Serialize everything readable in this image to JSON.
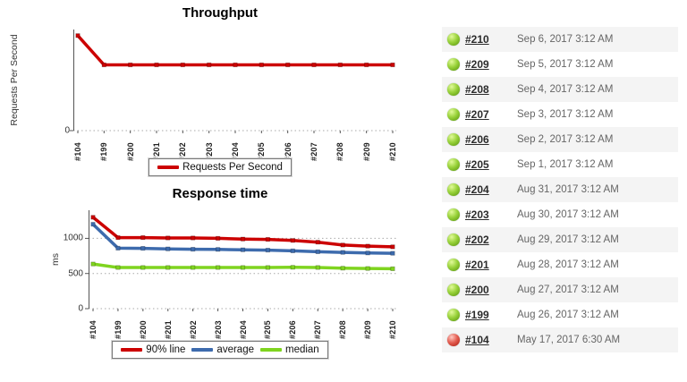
{
  "colors": {
    "red": "#cc0000",
    "blue": "#3d6bad",
    "green": "#7fd41f",
    "grid": "#aaaaaa",
    "axis": "#555555",
    "tick_text": "#333333",
    "date_text": "#666666",
    "row_stripe": "#f4f4f4",
    "legend_border": "#7a7a7a",
    "ball_green": "#8cc63f",
    "ball_red": "#d9534f"
  },
  "chart_data": [
    {
      "type": "line",
      "title": "Throughput",
      "ylabel": "Requests Per Second",
      "xlabel": "",
      "grid": "zero-line only, dotted",
      "legend_position": "bottom-center",
      "y_tick_labels_shown": [
        "0"
      ],
      "ylim": [
        0,
        100
      ],
      "y_ticks": [
        {
          "value": 0,
          "label": "0"
        }
      ],
      "categories": [
        "#104",
        "#199",
        "#200",
        "#201",
        "#202",
        "#203",
        "#204",
        "#205",
        "#206",
        "#207",
        "#208",
        "#209",
        "#210"
      ],
      "series": [
        {
          "name": "Requests Per Second",
          "color_key": "red",
          "values": [
            94,
            65,
            65,
            65,
            65,
            65,
            65,
            65,
            65,
            65,
            65,
            65,
            65
          ],
          "note_units": "relative (axis shows only 0)"
        }
      ]
    },
    {
      "type": "line",
      "title": "Response time",
      "ylabel": "ms",
      "xlabel": "",
      "grid": "dotted horizontal at 0, 500, 1000",
      "legend_position": "bottom-center",
      "ylim": [
        0,
        1400
      ],
      "y_ticks": [
        {
          "value": 0,
          "label": "0"
        },
        {
          "value": 500,
          "label": "500"
        },
        {
          "value": 1000,
          "label": "1000"
        }
      ],
      "categories": [
        "#104",
        "#199",
        "#200",
        "#201",
        "#202",
        "#203",
        "#204",
        "#205",
        "#206",
        "#207",
        "#208",
        "#209",
        "#210"
      ],
      "series": [
        {
          "name": "90% line",
          "color_key": "red",
          "values": [
            1300,
            1010,
            1010,
            1005,
            1005,
            1000,
            990,
            985,
            970,
            945,
            905,
            890,
            880
          ]
        },
        {
          "name": "average",
          "color_key": "blue",
          "values": [
            1200,
            860,
            858,
            850,
            845,
            842,
            838,
            832,
            822,
            810,
            800,
            792,
            788
          ]
        },
        {
          "name": "median",
          "color_key": "green",
          "values": [
            635,
            585,
            585,
            585,
            585,
            585,
            585,
            585,
            588,
            585,
            575,
            572,
            568
          ]
        }
      ]
    }
  ],
  "builds": {
    "rows": [
      {
        "id": "#210",
        "status": "success",
        "date": "Sep 6, 2017 3:12 AM"
      },
      {
        "id": "#209",
        "status": "success",
        "date": "Sep 5, 2017 3:12 AM"
      },
      {
        "id": "#208",
        "status": "success",
        "date": "Sep 4, 2017 3:12 AM"
      },
      {
        "id": "#207",
        "status": "success",
        "date": "Sep 3, 2017 3:12 AM"
      },
      {
        "id": "#206",
        "status": "success",
        "date": "Sep 2, 2017 3:12 AM"
      },
      {
        "id": "#205",
        "status": "success",
        "date": "Sep 1, 2017 3:12 AM"
      },
      {
        "id": "#204",
        "status": "success",
        "date": "Aug 31, 2017 3:12 AM"
      },
      {
        "id": "#203",
        "status": "success",
        "date": "Aug 30, 2017 3:12 AM"
      },
      {
        "id": "#202",
        "status": "success",
        "date": "Aug 29, 2017 3:12 AM"
      },
      {
        "id": "#201",
        "status": "success",
        "date": "Aug 28, 2017 3:12 AM"
      },
      {
        "id": "#200",
        "status": "success",
        "date": "Aug 27, 2017 3:12 AM"
      },
      {
        "id": "#199",
        "status": "success",
        "date": "Aug 26, 2017 3:12 AM"
      },
      {
        "id": "#104",
        "status": "failure",
        "date": "May 17, 2017 6:30 AM"
      }
    ]
  }
}
